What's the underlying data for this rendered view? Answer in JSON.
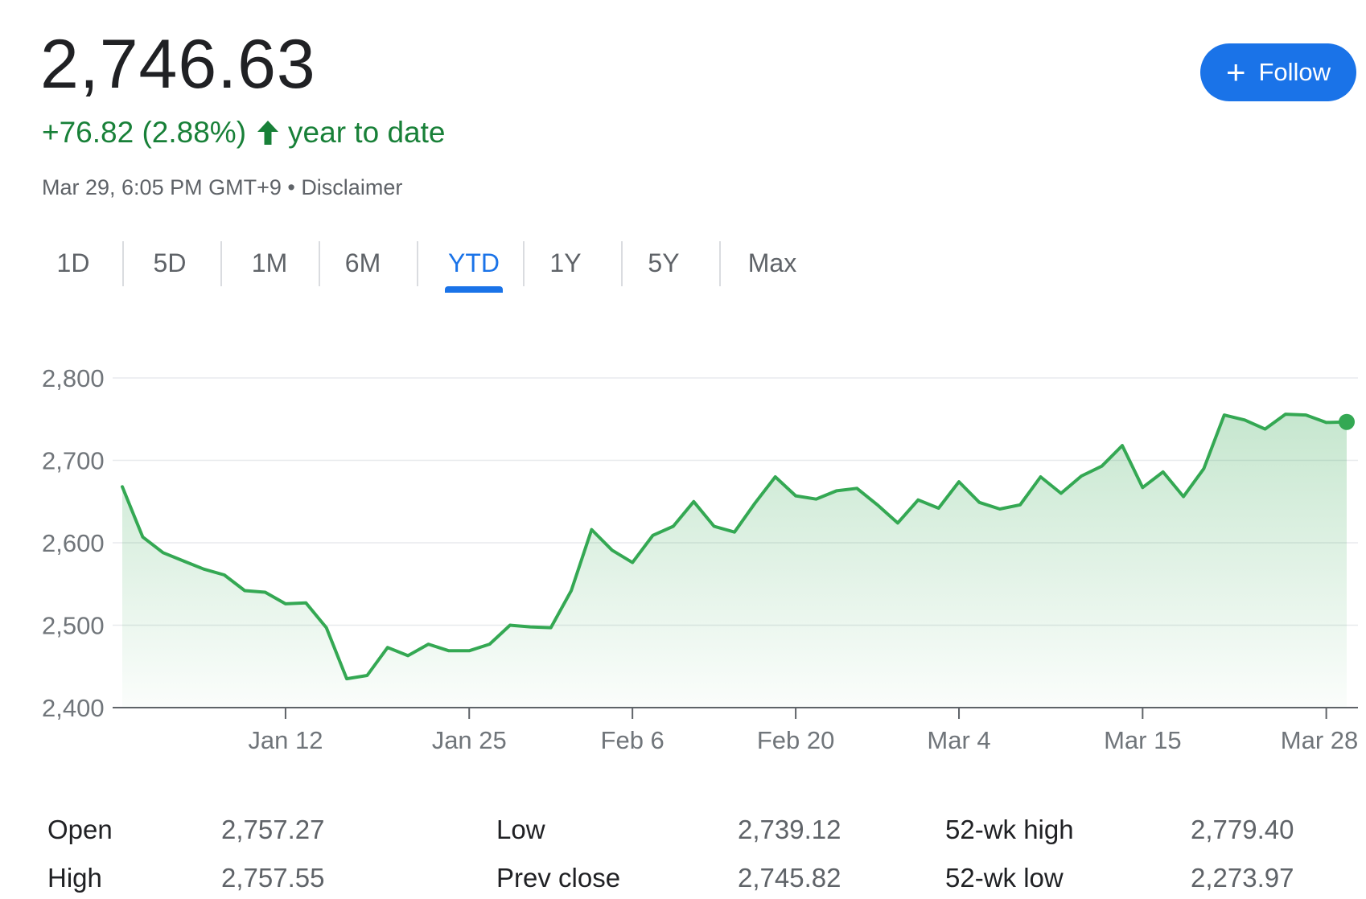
{
  "quote": {
    "price": "2,746.63",
    "change": "+76.82 (2.88%)",
    "period": "year to date",
    "timestamp": "Mar 29, 6:05 PM GMT+9 • Disclaimer",
    "follow_label": "Follow",
    "accent_color": "#1a73e8",
    "positive_color": "#188038"
  },
  "tabs": [
    {
      "label": "1D",
      "active": false
    },
    {
      "label": "5D",
      "active": false
    },
    {
      "label": "1M",
      "active": false
    },
    {
      "label": "6M",
      "active": false
    },
    {
      "label": "YTD",
      "active": true
    },
    {
      "label": "1Y",
      "active": false
    },
    {
      "label": "5Y",
      "active": false
    },
    {
      "label": "Max",
      "active": false
    }
  ],
  "chart_data": {
    "type": "area",
    "ylim": [
      2400,
      2800
    ],
    "yticks": [
      "2,800",
      "2,700",
      "2,600",
      "2,500",
      "2,400"
    ],
    "ytick_values": [
      2800,
      2700,
      2600,
      2500,
      2400
    ],
    "xtick_labels": [
      "Jan 12",
      "Jan 25",
      "Feb 6",
      "Feb 20",
      "Mar 4",
      "Mar 15",
      "Mar 28"
    ],
    "xtick_index": [
      8,
      17,
      25,
      33,
      41,
      50,
      59
    ],
    "line_color": "#34a853",
    "values": [
      2668,
      2607,
      2588,
      2578,
      2568,
      2561,
      2542,
      2540,
      2526,
      2527,
      2497,
      2435,
      2439,
      2473,
      2463,
      2477,
      2469,
      2469,
      2477,
      2500,
      2498,
      2497,
      2542,
      2616,
      2591,
      2576,
      2609,
      2620,
      2650,
      2620,
      2613,
      2648,
      2680,
      2657,
      2653,
      2663,
      2666,
      2646,
      2624,
      2652,
      2642,
      2674,
      2649,
      2641,
      2646,
      2680,
      2660,
      2681,
      2693,
      2718,
      2667,
      2686,
      2656,
      2690,
      2755,
      2749,
      2738,
      2756,
      2755,
      2746,
      2746.63
    ]
  },
  "stats": [
    {
      "label": "Open",
      "value": "2,757.27"
    },
    {
      "label": "High",
      "value": "2,757.55"
    },
    {
      "label": "Low",
      "value": "2,739.12"
    },
    {
      "label": "Prev close",
      "value": "2,745.82"
    },
    {
      "label": "52-wk high",
      "value": "2,779.40"
    },
    {
      "label": "52-wk low",
      "value": "2,273.97"
    }
  ]
}
